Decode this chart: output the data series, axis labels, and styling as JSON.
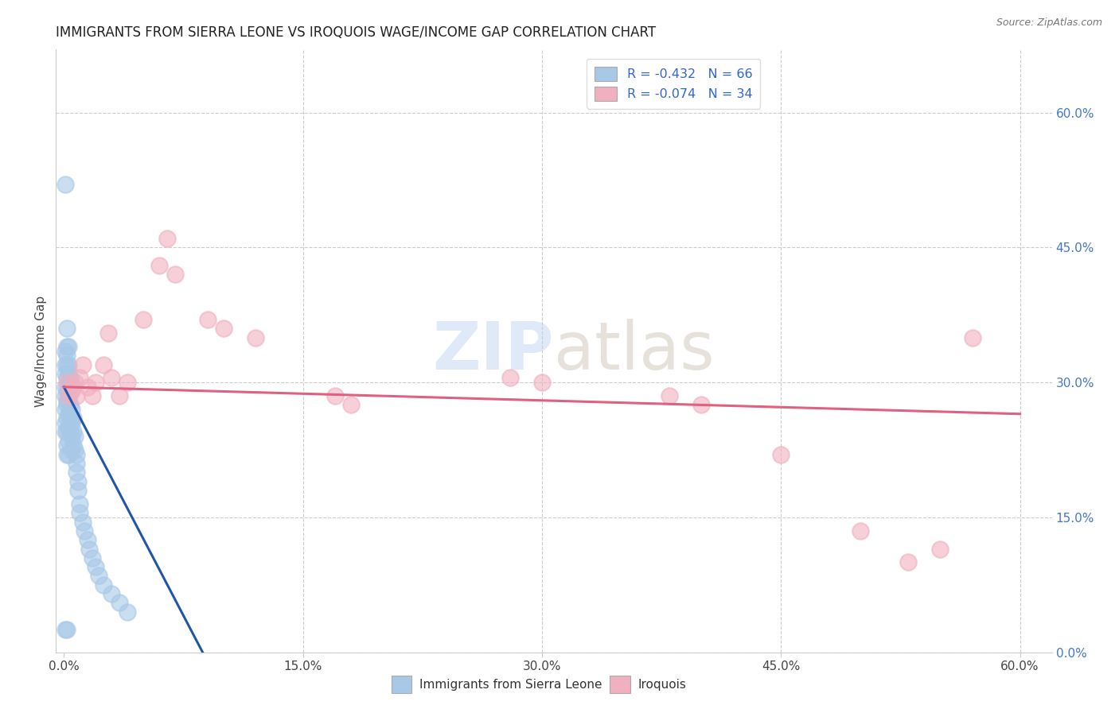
{
  "title": "IMMIGRANTS FROM SIERRA LEONE VS IROQUOIS WAGE/INCOME GAP CORRELATION CHART",
  "source": "Source: ZipAtlas.com",
  "ylabel": "Wage/Income Gap",
  "right_ytick_labels": [
    "0.0%",
    "15.0%",
    "30.0%",
    "45.0%",
    "60.0%"
  ],
  "right_ytick_values": [
    0.0,
    0.15,
    0.3,
    0.45,
    0.6
  ],
  "xtick_labels": [
    "0.0%",
    "15.0%",
    "30.0%",
    "45.0%",
    "60.0%"
  ],
  "xtick_values": [
    0.0,
    0.15,
    0.3,
    0.45,
    0.6
  ],
  "xlim": [
    -0.005,
    0.62
  ],
  "ylim": [
    0.0,
    0.67
  ],
  "blue_color": "#a8c8e8",
  "blue_edge_color": "#a8c8e8",
  "blue_line_color": "#2255aa",
  "pink_color": "#f0b0c0",
  "pink_edge_color": "#f0b0c0",
  "pink_line_color": "#e06080",
  "legend_blue_label": "R = -0.432   N = 66",
  "legend_pink_label": "R = -0.074   N = 34",
  "legend_blue_color": "#3366cc",
  "legend_pink_color": "#cc3366",
  "legend_bottom_blue": "Immigrants from Sierra Leone",
  "legend_bottom_pink": "Iroquois",
  "watermark_zip": "ZIP",
  "watermark_atlas": "atlas",
  "blue_line_x0": 0.0,
  "blue_line_x1": 0.09,
  "blue_line_y0": 0.295,
  "blue_line_y1": -0.01,
  "pink_line_x0": 0.0,
  "pink_line_x1": 0.6,
  "pink_line_y0": 0.295,
  "pink_line_y1": 0.265,
  "blue_scatter_x": [
    0.001,
    0.001,
    0.001,
    0.001,
    0.001,
    0.001,
    0.001,
    0.001,
    0.002,
    0.002,
    0.002,
    0.002,
    0.002,
    0.002,
    0.002,
    0.002,
    0.002,
    0.002,
    0.003,
    0.003,
    0.003,
    0.003,
    0.003,
    0.003,
    0.003,
    0.004,
    0.004,
    0.004,
    0.004,
    0.004,
    0.005,
    0.005,
    0.005,
    0.005,
    0.006,
    0.006,
    0.006,
    0.007,
    0.007,
    0.008,
    0.008,
    0.008,
    0.009,
    0.009,
    0.01,
    0.01,
    0.012,
    0.013,
    0.015,
    0.016,
    0.018,
    0.02,
    0.022,
    0.025,
    0.03,
    0.035,
    0.04,
    0.001,
    0.002,
    0.003,
    0.003,
    0.004,
    0.002,
    0.005,
    0.001,
    0.002
  ],
  "blue_scatter_y": [
    0.335,
    0.32,
    0.31,
    0.295,
    0.285,
    0.27,
    0.255,
    0.245,
    0.34,
    0.33,
    0.32,
    0.305,
    0.29,
    0.275,
    0.26,
    0.245,
    0.23,
    0.22,
    0.31,
    0.295,
    0.28,
    0.265,
    0.25,
    0.235,
    0.22,
    0.305,
    0.29,
    0.275,
    0.26,
    0.245,
    0.27,
    0.255,
    0.24,
    0.225,
    0.26,
    0.245,
    0.23,
    0.24,
    0.225,
    0.22,
    0.21,
    0.2,
    0.19,
    0.18,
    0.165,
    0.155,
    0.145,
    0.135,
    0.125,
    0.115,
    0.105,
    0.095,
    0.085,
    0.075,
    0.065,
    0.055,
    0.045,
    0.52,
    0.36,
    0.34,
    0.32,
    0.3,
    0.28,
    0.26,
    0.025,
    0.025
  ],
  "pink_scatter_x": [
    0.002,
    0.003,
    0.005,
    0.006,
    0.007,
    0.008,
    0.01,
    0.012,
    0.015,
    0.018,
    0.02,
    0.025,
    0.028,
    0.03,
    0.035,
    0.04,
    0.05,
    0.06,
    0.065,
    0.07,
    0.09,
    0.1,
    0.12,
    0.17,
    0.18,
    0.28,
    0.3,
    0.38,
    0.4,
    0.45,
    0.5,
    0.53,
    0.55,
    0.57
  ],
  "pink_scatter_y": [
    0.3,
    0.285,
    0.29,
    0.295,
    0.3,
    0.285,
    0.305,
    0.32,
    0.295,
    0.285,
    0.3,
    0.32,
    0.355,
    0.305,
    0.285,
    0.3,
    0.37,
    0.43,
    0.46,
    0.42,
    0.37,
    0.36,
    0.35,
    0.285,
    0.275,
    0.305,
    0.3,
    0.285,
    0.275,
    0.22,
    0.135,
    0.1,
    0.115,
    0.35
  ]
}
